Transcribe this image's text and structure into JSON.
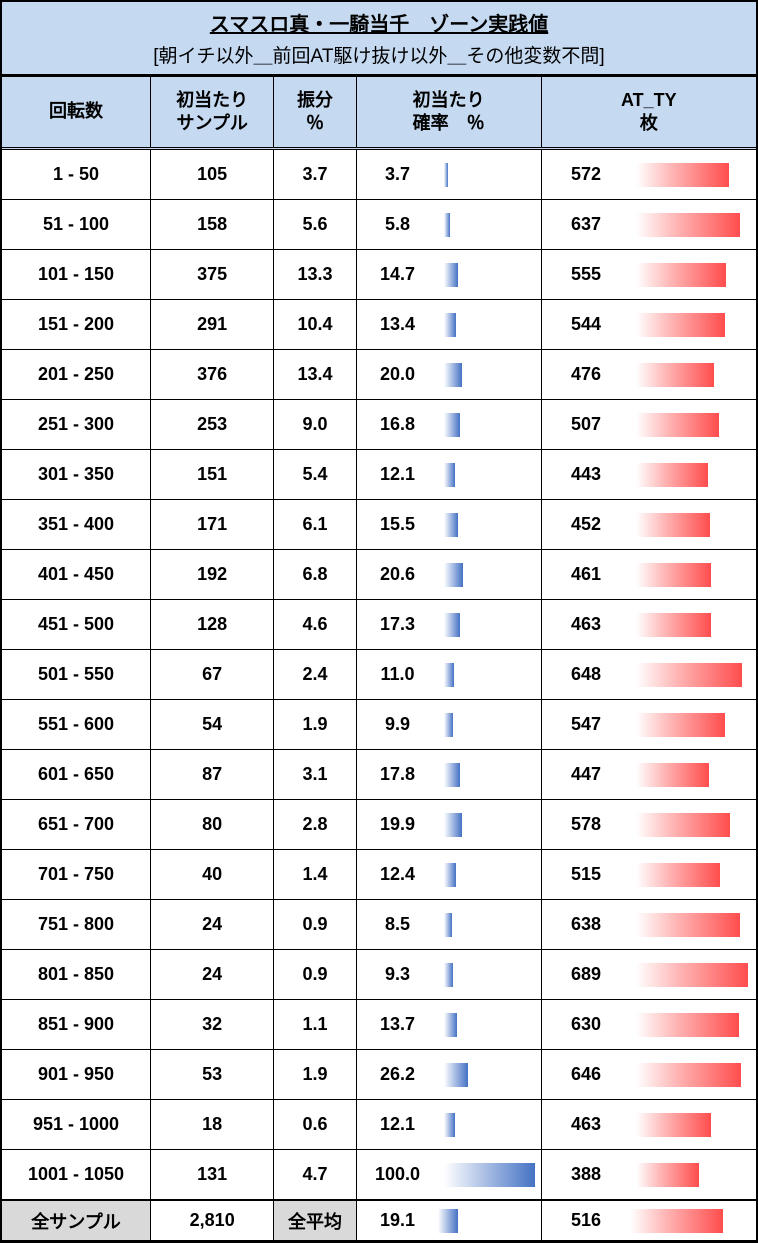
{
  "title": {
    "line1": "スマスロ真・一騎当千　ゾーン実践値",
    "line2": "[朝イチ以外＿前回AT駆け抜け以外＿その他変数不問]"
  },
  "headers": {
    "range": "回転数",
    "sample": "初当たり<br>サンプル",
    "shinpun": "振分<br>％",
    "prob": "初当たり<br>確率　％",
    "atty": "AT_TY<br>枚"
  },
  "colors": {
    "header_bg": "#c5d9f1",
    "sum_bg": "#d9d9d9",
    "bar_blue_from": "#ffffff",
    "bar_blue_to": "#4472c4",
    "bar_red_from": "#ffffff",
    "bar_red_to": "#ff4d4d"
  },
  "prob_bar_max": 100.0,
  "atty_bar_max": 700,
  "rows": [
    {
      "range": "1 - 50",
      "sample": "105",
      "shinpun": "3.7",
      "prob": "3.7",
      "prob_bar": 3.7,
      "atty": "572",
      "atty_bar": 572
    },
    {
      "range": "51 - 100",
      "sample": "158",
      "shinpun": "5.6",
      "prob": "5.8",
      "prob_bar": 5.8,
      "atty": "637",
      "atty_bar": 637
    },
    {
      "range": "101 - 150",
      "sample": "375",
      "shinpun": "13.3",
      "prob": "14.7",
      "prob_bar": 14.7,
      "atty": "555",
      "atty_bar": 555
    },
    {
      "range": "151 - 200",
      "sample": "291",
      "shinpun": "10.4",
      "prob": "13.4",
      "prob_bar": 13.4,
      "atty": "544",
      "atty_bar": 544
    },
    {
      "range": "201 - 250",
      "sample": "376",
      "shinpun": "13.4",
      "prob": "20.0",
      "prob_bar": 20.0,
      "atty": "476",
      "atty_bar": 476
    },
    {
      "range": "251 - 300",
      "sample": "253",
      "shinpun": "9.0",
      "prob": "16.8",
      "prob_bar": 16.8,
      "atty": "507",
      "atty_bar": 507
    },
    {
      "range": "301 - 350",
      "sample": "151",
      "shinpun": "5.4",
      "prob": "12.1",
      "prob_bar": 12.1,
      "atty": "443",
      "atty_bar": 443
    },
    {
      "range": "351 - 400",
      "sample": "171",
      "shinpun": "6.1",
      "prob": "15.5",
      "prob_bar": 15.5,
      "atty": "452",
      "atty_bar": 452
    },
    {
      "range": "401 - 450",
      "sample": "192",
      "shinpun": "6.8",
      "prob": "20.6",
      "prob_bar": 20.6,
      "atty": "461",
      "atty_bar": 461
    },
    {
      "range": "451 - 500",
      "sample": "128",
      "shinpun": "4.6",
      "prob": "17.3",
      "prob_bar": 17.3,
      "atty": "463",
      "atty_bar": 463
    },
    {
      "range": "501 - 550",
      "sample": "67",
      "shinpun": "2.4",
      "prob": "11.0",
      "prob_bar": 11.0,
      "atty": "648",
      "atty_bar": 648
    },
    {
      "range": "551 - 600",
      "sample": "54",
      "shinpun": "1.9",
      "prob": "9.9",
      "prob_bar": 9.9,
      "atty": "547",
      "atty_bar": 547
    },
    {
      "range": "601 - 650",
      "sample": "87",
      "shinpun": "3.1",
      "prob": "17.8",
      "prob_bar": 17.8,
      "atty": "447",
      "atty_bar": 447
    },
    {
      "range": "651 - 700",
      "sample": "80",
      "shinpun": "2.8",
      "prob": "19.9",
      "prob_bar": 19.9,
      "atty": "578",
      "atty_bar": 578
    },
    {
      "range": "701 - 750",
      "sample": "40",
      "shinpun": "1.4",
      "prob": "12.4",
      "prob_bar": 12.4,
      "atty": "515",
      "atty_bar": 515
    },
    {
      "range": "751 - 800",
      "sample": "24",
      "shinpun": "0.9",
      "prob": "8.5",
      "prob_bar": 8.5,
      "atty": "638",
      "atty_bar": 638
    },
    {
      "range": "801 - 850",
      "sample": "24",
      "shinpun": "0.9",
      "prob": "9.3",
      "prob_bar": 9.3,
      "atty": "689",
      "atty_bar": 689
    },
    {
      "range": "851 - 900",
      "sample": "32",
      "shinpun": "1.1",
      "prob": "13.7",
      "prob_bar": 13.7,
      "atty": "630",
      "atty_bar": 630
    },
    {
      "range": "901 - 950",
      "sample": "53",
      "shinpun": "1.9",
      "prob": "26.2",
      "prob_bar": 26.2,
      "atty": "646",
      "atty_bar": 646
    },
    {
      "range": "951 - 1000",
      "sample": "18",
      "shinpun": "0.6",
      "prob": "12.1",
      "prob_bar": 12.1,
      "atty": "463",
      "atty_bar": 463
    },
    {
      "range": "1001 - 1050",
      "sample": "131",
      "shinpun": "4.7",
      "prob": "100.0",
      "prob_bar": 100.0,
      "atty": "388",
      "atty_bar": 388
    }
  ],
  "summary": {
    "range": "全サンプル",
    "sample": "2,810",
    "shinpun": "全平均",
    "prob": "19.1",
    "prob_bar": 19.1,
    "atty": "516",
    "atty_bar": 516
  }
}
